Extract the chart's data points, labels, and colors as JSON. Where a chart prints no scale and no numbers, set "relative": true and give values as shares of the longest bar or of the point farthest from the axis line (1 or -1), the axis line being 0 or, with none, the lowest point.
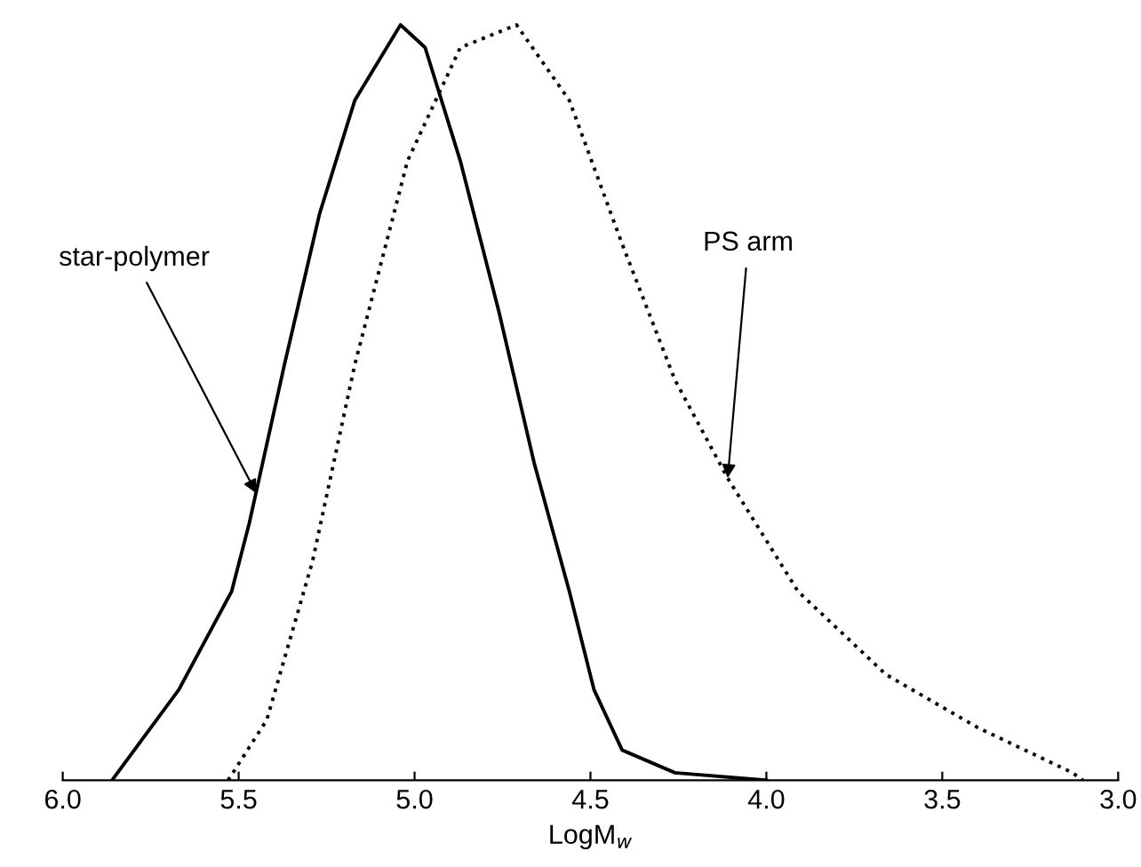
{
  "chart_data": {
    "type": "line",
    "relative": true,
    "xlabel": "LogM$_{w}$",
    "xlim": [
      6.0,
      3.0
    ],
    "xticks": [
      {
        "value": 6.0,
        "label": "6.0"
      },
      {
        "value": 5.5,
        "label": "5.5"
      },
      {
        "value": 5.0,
        "label": "5.0"
      },
      {
        "value": 4.5,
        "label": "4.5"
      },
      {
        "value": 4.0,
        "label": "4.0"
      },
      {
        "value": 3.5,
        "label": "3.5"
      },
      {
        "value": 3.0,
        "label": "3.0"
      }
    ],
    "series": [
      {
        "color": "#000000",
        "line_style": "solid",
        "x": [
          5.86,
          5.67,
          5.52,
          5.47,
          5.37,
          5.27,
          5.17,
          5.04,
          4.97,
          4.87,
          4.76,
          4.66,
          4.56,
          4.49,
          4.41,
          4.26,
          4.0
        ],
        "values": [
          0,
          0.12,
          0.25,
          0.34,
          0.55,
          0.75,
          0.9,
          1.0,
          0.97,
          0.82,
          0.62,
          0.42,
          0.25,
          0.12,
          0.04,
          0.01,
          0
        ]
      },
      {
        "color": "#000000",
        "line_style": "dotted",
        "x": [
          5.53,
          5.42,
          5.29,
          5.17,
          5.02,
          4.87,
          4.71,
          4.56,
          4.41,
          4.26,
          4.11,
          3.91,
          3.66,
          3.4,
          3.13,
          3.1
        ],
        "values": [
          0,
          0.08,
          0.29,
          0.55,
          0.82,
          0.97,
          1.0,
          0.9,
          0.71,
          0.53,
          0.4,
          0.25,
          0.14,
          0.07,
          0.01,
          0
        ]
      }
    ],
    "annotations": [
      {
        "text": "star-polymer",
        "x": 5.45,
        "y": 0.38
      },
      {
        "text": "PS arm",
        "x": 4.11,
        "y": 0.4
      }
    ],
    "grid": false,
    "legend": false,
    "marker": "none"
  }
}
